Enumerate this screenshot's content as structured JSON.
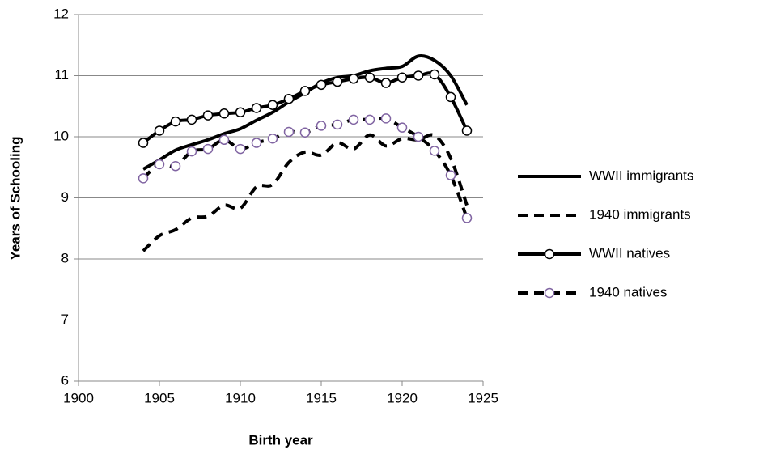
{
  "chart_data": {
    "type": "line",
    "x_label": "Birth year",
    "y_label": "Years of Schooling",
    "x": [
      1904,
      1905,
      1906,
      1907,
      1908,
      1909,
      1910,
      1911,
      1912,
      1913,
      1914,
      1915,
      1916,
      1917,
      1918,
      1919,
      1920,
      1921,
      1922,
      1923,
      1924
    ],
    "xlim": [
      1900,
      1925
    ],
    "xticks": [
      1900,
      1905,
      1910,
      1915,
      1920,
      1925
    ],
    "ylim": [
      6,
      12
    ],
    "yticks": [
      6,
      7,
      8,
      9,
      10,
      11,
      12
    ],
    "grid": true,
    "smooth": true,
    "legend": "right",
    "series": [
      {
        "name": "WWII immigrants",
        "color": "#000000",
        "dashed": false,
        "marker": null,
        "values": [
          9.47,
          9.62,
          9.78,
          9.87,
          9.95,
          10.05,
          10.13,
          10.27,
          10.4,
          10.57,
          10.72,
          10.88,
          10.97,
          11.0,
          11.08,
          11.12,
          11.15,
          11.32,
          11.25,
          11.0,
          10.52
        ]
      },
      {
        "name": "1940 immigrants",
        "color": "#000000",
        "dashed": true,
        "marker": null,
        "values": [
          8.13,
          8.38,
          8.48,
          8.67,
          8.7,
          8.88,
          8.83,
          9.18,
          9.22,
          9.58,
          9.75,
          9.7,
          9.9,
          9.8,
          10.03,
          9.85,
          9.97,
          9.95,
          10.02,
          9.65,
          8.88
        ]
      },
      {
        "name": "WWII natives",
        "color": "#000000",
        "dashed": false,
        "marker": "circle",
        "marker_color": "#000000",
        "values": [
          9.9,
          10.1,
          10.25,
          10.28,
          10.35,
          10.38,
          10.4,
          10.47,
          10.52,
          10.62,
          10.75,
          10.85,
          10.9,
          10.95,
          10.97,
          10.88,
          10.97,
          11.0,
          11.02,
          10.65,
          10.1
        ]
      },
      {
        "name": "1940 natives",
        "color": "#000000",
        "dashed": true,
        "marker": "circle",
        "marker_color": "#8064a2",
        "values": [
          9.32,
          9.55,
          9.52,
          9.76,
          9.8,
          9.95,
          9.8,
          9.9,
          9.97,
          10.08,
          10.07,
          10.18,
          10.2,
          10.28,
          10.28,
          10.3,
          10.15,
          10.0,
          9.77,
          9.37,
          8.67
        ]
      }
    ]
  }
}
